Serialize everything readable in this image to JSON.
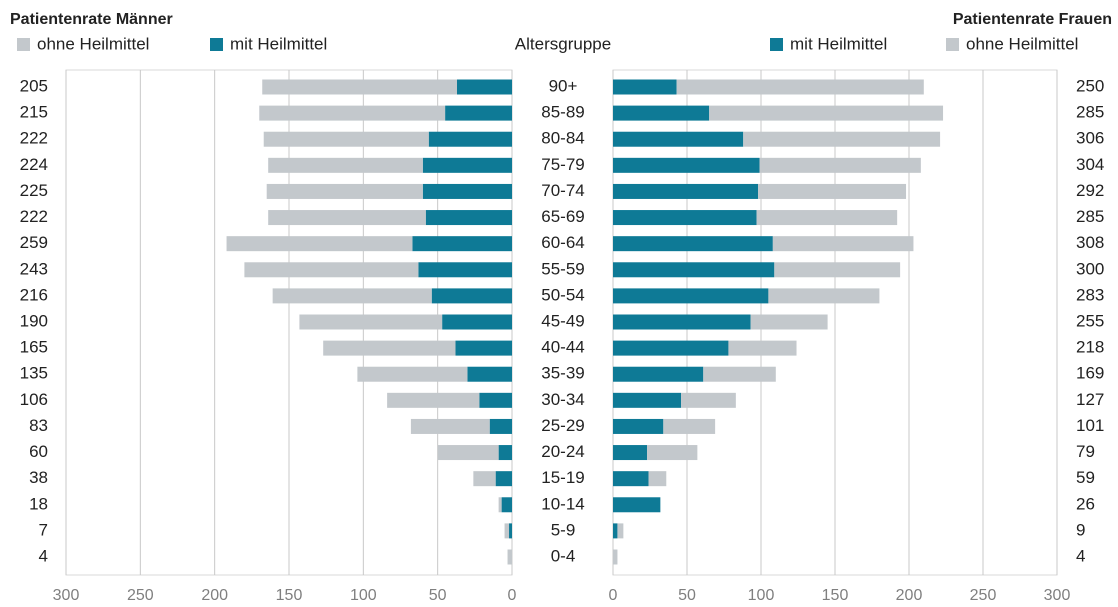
{
  "chart_data": {
    "type": "pyramid",
    "category_axis_label": "Altersgruppe",
    "categories": [
      "90+",
      "85-89",
      "80-84",
      "75-79",
      "70-74",
      "65-69",
      "60-64",
      "55-59",
      "50-54",
      "45-49",
      "40-44",
      "35-39",
      "30-34",
      "25-29",
      "20-24",
      "15-19",
      "10-14",
      "5-9",
      "0-4"
    ],
    "left": {
      "title": "Patientenrate Männer",
      "totals": [
        205,
        215,
        222,
        224,
        225,
        222,
        259,
        243,
        216,
        190,
        165,
        135,
        106,
        83,
        60,
        38,
        18,
        7,
        4
      ],
      "xlim": [
        300,
        0
      ],
      "xticks": [
        300,
        250,
        200,
        150,
        100,
        50,
        0
      ],
      "series": [
        {
          "name": "ohne Heilmittel",
          "color": "#c3c8cc",
          "values": [
            131,
            125,
            111,
            104,
            105,
            106,
            125,
            117,
            107,
            96,
            89,
            74,
            62,
            53,
            41,
            15,
            2,
            3,
            3
          ]
        },
        {
          "name": "mit Heilmittel",
          "color": "#0e7a96",
          "values": [
            37,
            45,
            56,
            60,
            60,
            58,
            67,
            63,
            54,
            47,
            38,
            30,
            22,
            15,
            9,
            11,
            7,
            2,
            0
          ]
        }
      ]
    },
    "right": {
      "title": "Patientenrate Frauen",
      "totals": [
        250,
        285,
        306,
        304,
        292,
        285,
        308,
        300,
        283,
        255,
        218,
        169,
        127,
        101,
        79,
        59,
        26,
        9,
        4
      ],
      "xlim": [
        0,
        300
      ],
      "xticks": [
        0,
        50,
        100,
        150,
        200,
        250,
        300
      ],
      "series": [
        {
          "name": "mit Heilmittel",
          "color": "#0e7a96",
          "values": [
            43,
            65,
            88,
            99,
            98,
            97,
            108,
            109,
            105,
            93,
            78,
            61,
            46,
            34,
            23,
            24,
            32,
            3,
            0
          ]
        },
        {
          "name": "ohne Heilmittel",
          "color": "#c3c8cc",
          "values": [
            167,
            158,
            133,
            109,
            100,
            95,
            95,
            85,
            75,
            52,
            46,
            49,
            37,
            35,
            34,
            12,
            0,
            4,
            3
          ]
        }
      ]
    }
  }
}
